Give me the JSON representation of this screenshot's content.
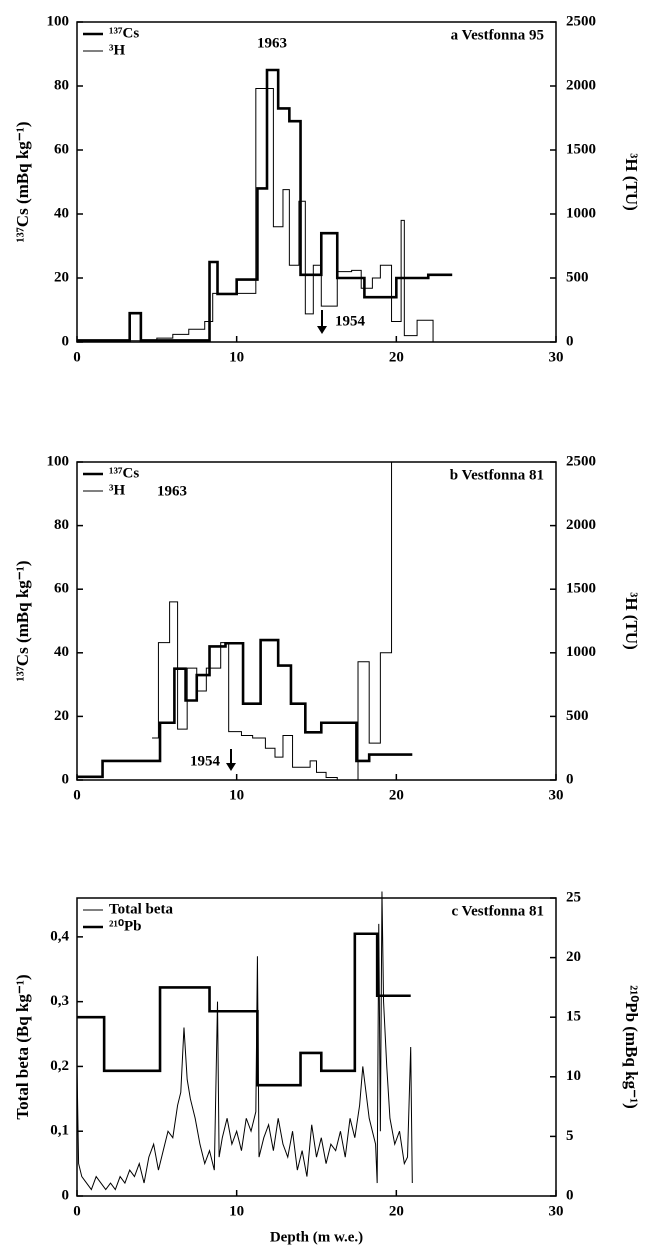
{
  "chart_data": [
    {
      "type": "line",
      "panel_label": "a  Vestfonna 95",
      "y_label": "¹³⁷Cs (mBq kg⁻¹)",
      "y2_label": "³H (TU)",
      "xlim": [
        0,
        30
      ],
      "xticks": [
        0,
        10,
        20,
        30
      ],
      "ylim": [
        0,
        100
      ],
      "yticks": [
        0,
        20,
        40,
        60,
        80,
        100
      ],
      "y2lim": [
        0,
        2500
      ],
      "y2ticks": [
        0,
        500,
        1000,
        1500,
        2000,
        2500
      ],
      "annotations": [
        "1963",
        "1954"
      ],
      "series": [
        {
          "name": "¹³⁷Cs",
          "color": "#000000",
          "width": 2.6,
          "step": true,
          "x": [
            0,
            3.3,
            4,
            8.3,
            8.8,
            10,
            11.3,
            11.9,
            12.6,
            13.3,
            14,
            15.3,
            16.3,
            18,
            20,
            22,
            23.5
          ],
          "values": [
            0.5,
            9,
            0.5,
            25,
            15,
            19.5,
            48,
            85,
            73,
            69,
            21,
            34,
            20,
            14,
            20,
            21,
            21
          ]
        },
        {
          "name": "³H",
          "color": "#000000",
          "width": 1,
          "step": true,
          "axis": "y2",
          "x": [
            0,
            2,
            5,
            6,
            7,
            8,
            8.5,
            10.2,
            11.2,
            12.3,
            12.9,
            13.3,
            13.9,
            14.3,
            14.8,
            15.3,
            16.3,
            17.2,
            17.8,
            18.5,
            19,
            19.7,
            20.3,
            20.5,
            21.3,
            22.3
          ],
          "values": [
            0,
            10,
            30,
            60,
            100,
            160,
            380,
            380,
            1980,
            900,
            1190,
            600,
            1100,
            220,
            600,
            280,
            550,
            560,
            420,
            500,
            600,
            160,
            950,
            50,
            170,
            0
          ]
        }
      ]
    },
    {
      "type": "line",
      "panel_label": "b  Vestfonna 81",
      "y_label": "¹³⁷Cs (mBq kg⁻¹)",
      "y2_label": "³H (TU)",
      "xlim": [
        0,
        30
      ],
      "xticks": [
        0,
        10,
        20,
        30
      ],
      "ylim": [
        0,
        100
      ],
      "yticks": [
        0,
        20,
        40,
        60,
        80,
        100
      ],
      "y2lim": [
        0,
        2500
      ],
      "y2ticks": [
        0,
        500,
        1000,
        1500,
        2000,
        2500
      ],
      "annotations": [
        "1963",
        "1954"
      ],
      "series": [
        {
          "name": "¹³⁷Cs",
          "color": "#000000",
          "width": 2.6,
          "step": true,
          "x": [
            0,
            1.6,
            5.2,
            6.1,
            6.8,
            7.5,
            8.3,
            9.3,
            10.4,
            11.5,
            12.6,
            13.4,
            14.3,
            15.3,
            17.5,
            18.3,
            21
          ],
          "values": [
            1,
            6,
            18,
            35,
            25,
            33,
            42,
            43,
            24,
            44,
            36,
            24,
            15,
            18,
            6,
            8,
            8
          ]
        },
        {
          "name": "³H",
          "color": "#000000",
          "width": 1,
          "step": true,
          "axis": "y2",
          "x": [
            4.7,
            5.1,
            5.8,
            6.3,
            6.9,
            7.5,
            8.1,
            9,
            9.5,
            10.3,
            11,
            11.8,
            12.4,
            12.9,
            13.5,
            14.6,
            15,
            15.6,
            16.3,
            17.6,
            18.3,
            19,
            19.7
          ],
          "values": [
            330,
            1080,
            1400,
            400,
            880,
            700,
            880,
            1080,
            380,
            350,
            330,
            250,
            180,
            350,
            100,
            150,
            60,
            20,
            0,
            930,
            290,
            1000,
            2500
          ]
        }
      ]
    },
    {
      "type": "line",
      "panel_label": "c  Vestfonna 81",
      "x_label": "Depth (m w.e.)",
      "y_label": "Total beta (Bq kg⁻¹)",
      "y2_label": "²¹⁰Pb (mBq kg⁻¹)",
      "xlim": [
        0,
        30
      ],
      "xticks": [
        0,
        10,
        20,
        30
      ],
      "ylim": [
        0,
        0.46
      ],
      "yticks": [
        0,
        {
          "value": 0.1,
          "label": "0,1"
        },
        {
          "value": 0.2,
          "label": "0,2"
        },
        {
          "value": 0.3,
          "label": "0,3"
        },
        {
          "value": 0.4,
          "label": "0,4"
        }
      ],
      "y2lim": [
        0,
        25
      ],
      "y2ticks": [
        0,
        5,
        10,
        15,
        20,
        25
      ],
      "series": [
        {
          "name": "Total beta",
          "color": "#000000",
          "width": 1,
          "step": false,
          "x": [
            0,
            0.1,
            0.3,
            0.6,
            0.9,
            1.2,
            1.5,
            1.8,
            2.1,
            2.4,
            2.7,
            3.0,
            3.3,
            3.6,
            3.9,
            4.2,
            4.5,
            4.8,
            5.1,
            5.4,
            5.7,
            6.0,
            6.3,
            6.5,
            6.7,
            6.9,
            7.1,
            7.4,
            7.7,
            8.0,
            8.3,
            8.6,
            8.8,
            8.9,
            9.1,
            9.4,
            9.7,
            10.0,
            10.3,
            10.6,
            10.9,
            11.2,
            11.3,
            11.4,
            11.7,
            12.0,
            12.3,
            12.6,
            12.9,
            13.2,
            13.5,
            13.8,
            14.1,
            14.4,
            14.7,
            15.0,
            15.3,
            15.6,
            15.9,
            16.2,
            16.5,
            16.8,
            17.1,
            17.4,
            17.7,
            17.9,
            18.1,
            18.3,
            18.5,
            18.7,
            18.8,
            18.9,
            19.0,
            19.1,
            19.2,
            19.4,
            19.6,
            19.9,
            20.2,
            20.5,
            20.7,
            20.9,
            21.0
          ],
          "values": [
            0.2,
            0.05,
            0.03,
            0.02,
            0.01,
            0.03,
            0.02,
            0.01,
            0.02,
            0.01,
            0.03,
            0.02,
            0.04,
            0.03,
            0.05,
            0.02,
            0.06,
            0.08,
            0.04,
            0.07,
            0.1,
            0.09,
            0.14,
            0.16,
            0.26,
            0.18,
            0.15,
            0.12,
            0.08,
            0.05,
            0.07,
            0.04,
            0.3,
            0.06,
            0.09,
            0.12,
            0.08,
            0.1,
            0.07,
            0.12,
            0.1,
            0.13,
            0.37,
            0.06,
            0.09,
            0.11,
            0.07,
            0.12,
            0.08,
            0.06,
            0.1,
            0.04,
            0.07,
            0.03,
            0.11,
            0.06,
            0.09,
            0.05,
            0.08,
            0.07,
            0.1,
            0.06,
            0.12,
            0.09,
            0.14,
            0.2,
            0.16,
            0.12,
            0.1,
            0.08,
            0.02,
            0.42,
            0.1,
            0.47,
            0.3,
            0.2,
            0.12,
            0.08,
            0.1,
            0.05,
            0.06,
            0.23,
            0.02
          ]
        },
        {
          "name": "²¹⁰Pb",
          "color": "#000000",
          "width": 2.6,
          "step": true,
          "axis": "y2",
          "x": [
            0,
            1.7,
            5.2,
            8.3,
            11.3,
            14,
            15.3,
            17.4,
            18.8,
            20.9
          ],
          "values": [
            15,
            10.5,
            17.5,
            15.5,
            9.3,
            12,
            10.5,
            22,
            16.8,
            16.8
          ]
        }
      ]
    }
  ]
}
